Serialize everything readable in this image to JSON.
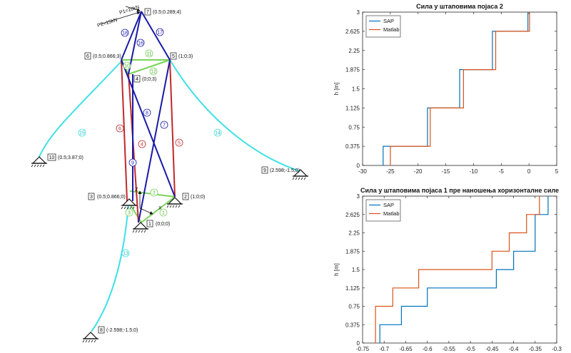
{
  "structure": {
    "loads": {
      "p2": "P2=15kN",
      "p1": "P1=10kN"
    },
    "axes": {
      "z": "Z",
      "x": "X"
    },
    "nodes": [
      {
        "id": "1",
        "coords": "(0;0;0)"
      },
      {
        "id": "2",
        "coords": "(1;0;0)"
      },
      {
        "id": "3",
        "coords": "(0.5;0.866;0)"
      },
      {
        "id": "4",
        "coords": "(0;0;3)"
      },
      {
        "id": "5",
        "coords": "(1;0;3)"
      },
      {
        "id": "6",
        "coords": "(0.5;0.866;3)"
      },
      {
        "id": "7",
        "coords": "(0.5;0.289;4)"
      },
      {
        "id": "8",
        "coords": "(-2.598;-1.5;0)"
      },
      {
        "id": "9",
        "coords": "(2.598;-1.5;0)"
      },
      {
        "id": "10",
        "coords": "(0.5;3.87;0)"
      }
    ],
    "members": [
      "1",
      "2",
      "3",
      "4",
      "5",
      "6",
      "7",
      "8",
      "9",
      "10",
      "11",
      "12",
      "13",
      "14",
      "15",
      "16",
      "17",
      "18"
    ],
    "colors": {
      "blue": "#1a1aa8",
      "red": "#c0282d",
      "green": "#7ad35a",
      "cyan": "#3fe0e6"
    }
  },
  "chart_data": [
    {
      "type": "line",
      "title": "Сила у штаповима појаса 2",
      "xlabel": "",
      "ylabel": "h [m]",
      "xlim": [
        -30,
        5
      ],
      "ylim": [
        0,
        3
      ],
      "xticks": [
        "-30",
        "-25",
        "-20",
        "-15",
        "-10",
        "-5",
        "0",
        "5"
      ],
      "yticks": [
        "0",
        "0.375",
        "0.75",
        "1.125",
        "1.5",
        "1.875",
        "2.25",
        "2.625",
        "3"
      ],
      "legend": "top-left",
      "series": [
        {
          "name": "SAP",
          "color": "#0072bd",
          "x": [
            -26.3,
            -26.3,
            -18.3,
            -18.3,
            -12.5,
            -12.5,
            -6.6,
            -6.6,
            -0.2,
            -0.2
          ],
          "y": [
            0,
            0.375,
            0.375,
            1.125,
            1.125,
            1.875,
            1.875,
            2.625,
            2.625,
            3
          ]
        },
        {
          "name": "Matlab",
          "color": "#d95319",
          "x": [
            -25.0,
            -25.0,
            -17.8,
            -17.8,
            -11.8,
            -11.8,
            -6.0,
            -6.0,
            0.1,
            0.1
          ],
          "y": [
            0,
            0.375,
            0.375,
            1.125,
            1.125,
            1.875,
            1.875,
            2.625,
            2.625,
            3
          ]
        }
      ]
    },
    {
      "type": "line",
      "title": "Сила у штаповима појаса 1 пре наношења хоризонталне силе",
      "xlabel": "",
      "ylabel": "h [m]",
      "xlim": [
        -0.75,
        -0.3
      ],
      "ylim": [
        0,
        3
      ],
      "xticks": [
        "-0.75",
        "-0.7",
        "-0.65",
        "-0.6",
        "-0.55",
        "-0.5",
        "-0.45",
        "-0.4",
        "-0.35",
        "-0.3"
      ],
      "yticks": [
        "0",
        "0.375",
        "0.75",
        "1.125",
        "1.5",
        "1.875",
        "2.25",
        "2.625",
        "3"
      ],
      "legend": "top-left",
      "series": [
        {
          "name": "SAP",
          "color": "#0072bd",
          "x": [
            -0.71,
            -0.71,
            -0.66,
            -0.66,
            -0.6,
            -0.6,
            -0.44,
            -0.44,
            -0.4,
            -0.4,
            -0.35,
            -0.35,
            -0.32,
            -0.32
          ],
          "y": [
            0,
            0.375,
            0.375,
            0.75,
            0.75,
            1.125,
            1.125,
            1.5,
            1.5,
            1.875,
            1.875,
            2.625,
            2.625,
            3
          ]
        },
        {
          "name": "Matlab",
          "color": "#d95319",
          "x": [
            -0.72,
            -0.72,
            -0.68,
            -0.68,
            -0.62,
            -0.62,
            -0.45,
            -0.45,
            -0.41,
            -0.41,
            -0.37,
            -0.37,
            -0.34,
            -0.34
          ],
          "y": [
            0,
            0.75,
            0.75,
            1.125,
            1.125,
            1.5,
            1.5,
            1.875,
            1.875,
            2.25,
            2.25,
            2.625,
            2.625,
            3
          ]
        }
      ]
    }
  ]
}
